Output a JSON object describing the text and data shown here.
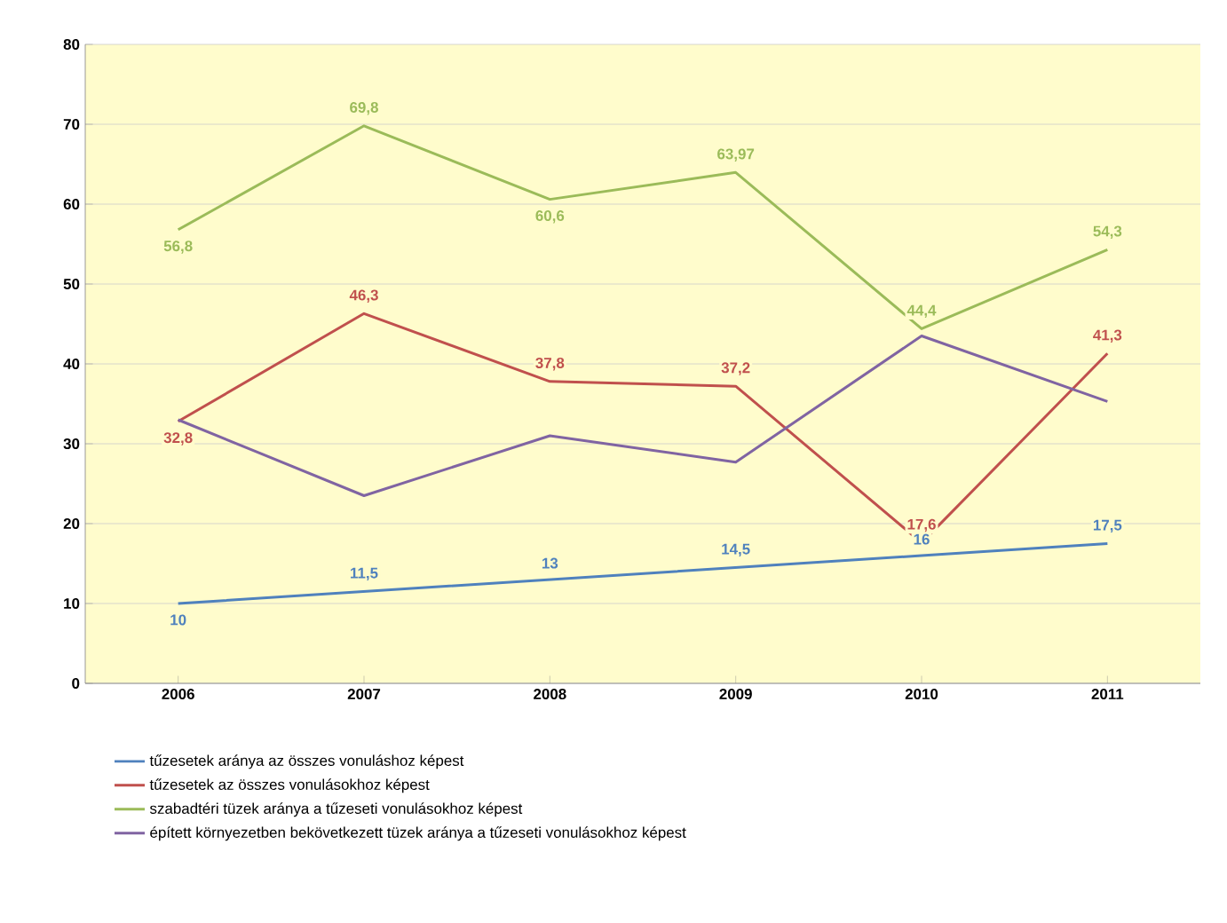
{
  "chart_data": {
    "type": "line",
    "categories": [
      "2006",
      "2007",
      "2008",
      "2009",
      "2010",
      "2011"
    ],
    "series": [
      {
        "name": "tűzesetek aránya az összes vonuláshoz képest",
        "color": "#4f81bd",
        "values": [
          10,
          11.5,
          13,
          14.5,
          16,
          17.5
        ],
        "value_labels": [
          "10",
          "11,5",
          "13",
          "14,5",
          "16",
          "17,5"
        ]
      },
      {
        "name": "tűzesetek az összes vonulásokhoz képest",
        "color": "#c0504d",
        "values": [
          32.8,
          46.3,
          37.8,
          37.2,
          17.6,
          41.3
        ],
        "value_labels": [
          "32,8",
          "46,3",
          "37,8",
          "37,2",
          "17,6",
          "41,3"
        ]
      },
      {
        "name": "szabadtéri tüzek aránya a tűzeseti vonulásokhoz képest",
        "color": "#9bbb59",
        "values": [
          56.8,
          69.8,
          60.6,
          63.97,
          44.4,
          54.3
        ],
        "value_labels": [
          "56,8",
          "69,8",
          "60,6",
          "63,97",
          "44,4",
          "54,3"
        ]
      },
      {
        "name": "épített környezetben bekövetkezett tüzek aránya a tűzeseti vonulásokhoz képest",
        "color": "#8064a2",
        "values": [
          33,
          23.5,
          31,
          27.7,
          43.5,
          35.3
        ]
      }
    ],
    "ylim": [
      0,
      80
    ],
    "yticks": [
      0,
      10,
      20,
      30,
      40,
      50,
      60,
      70,
      80
    ],
    "grid": "y",
    "legend": "bottom",
    "marker": "none",
    "line_style": "solid"
  }
}
